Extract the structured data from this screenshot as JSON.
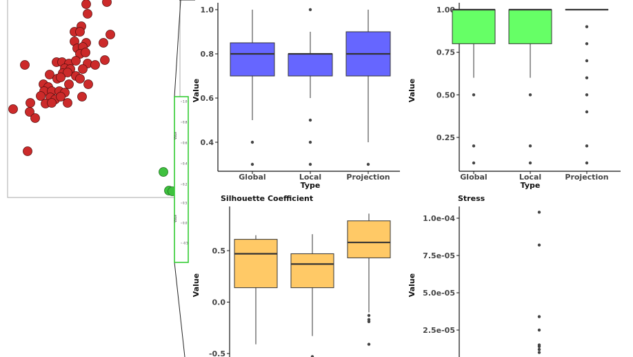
{
  "colors": {
    "scatter_fill": "#cc2a2a",
    "scatter_stroke": "#5a1010",
    "green_point": "#3fc13f",
    "panel_border": "#aaaaaa",
    "inset_border": "#33cc33",
    "mini_panel_label": "#bbbbbb",
    "blue_box": "#6666ff",
    "green_box": "#66ff66",
    "orange_box": "#ffc966",
    "outlier": "#444444",
    "median": "#333333"
  },
  "scatter": {
    "points": [
      [
        125,
        6
      ],
      [
        155,
        3
      ],
      [
        127,
        20
      ],
      [
        118,
        38
      ],
      [
        108,
        46
      ],
      [
        116,
        46
      ],
      [
        160,
        50
      ],
      [
        108,
        60
      ],
      [
        125,
        62
      ],
      [
        150,
        62
      ],
      [
        112,
        70
      ],
      [
        120,
        68
      ],
      [
        116,
        78
      ],
      [
        124,
        76
      ],
      [
        36,
        94
      ],
      [
        82,
        90
      ],
      [
        90,
        90
      ],
      [
        100,
        92
      ],
      [
        110,
        88
      ],
      [
        127,
        92
      ],
      [
        138,
        94
      ],
      [
        152,
        87
      ],
      [
        94,
        99
      ],
      [
        102,
        100
      ],
      [
        120,
        100
      ],
      [
        72,
        108
      ],
      [
        91,
        106
      ],
      [
        98,
        105
      ],
      [
        110,
        110
      ],
      [
        83,
        114
      ],
      [
        88,
        112
      ],
      [
        116,
        114
      ],
      [
        63,
        122
      ],
      [
        100,
        122
      ],
      [
        128,
        122
      ],
      [
        70,
        126
      ],
      [
        64,
        132
      ],
      [
        75,
        132
      ],
      [
        86,
        132
      ],
      [
        94,
        134
      ],
      [
        59,
        139
      ],
      [
        73,
        141
      ],
      [
        80,
        144
      ],
      [
        88,
        140
      ],
      [
        119,
        140
      ],
      [
        44,
        149
      ],
      [
        66,
        150
      ],
      [
        75,
        149
      ],
      [
        98,
        149
      ],
      [
        19,
        158
      ],
      [
        43,
        162
      ],
      [
        51,
        171
      ],
      [
        40,
        219
      ]
    ],
    "green_points": [
      [
        237,
        249
      ],
      [
        245,
        276
      ],
      [
        250,
        277
      ]
    ]
  },
  "inset": {
    "tick_values_top": [
      "1.0",
      "0.8",
      "0.6",
      "0.4",
      "0.2"
    ],
    "tick_values_bottom": [
      "0.5",
      "0.0",
      "-0.5"
    ],
    "axis_label_top": "Value",
    "axis_label_bottom": "Value"
  },
  "chart_data": [
    {
      "type": "box",
      "title": "",
      "xlabel": "Type",
      "ylabel": "Value",
      "ylim": [
        0.31,
        1.03
      ],
      "yticks": [
        "1.0",
        "0.8",
        "0.6",
        "0.4"
      ],
      "categories": [
        "Global",
        "Local",
        "Projection"
      ],
      "boxes": [
        {
          "lower_whisker": 0.5,
          "q1": 0.7,
          "median": 0.8,
          "q3": 0.85,
          "upper_whisker": 1.0,
          "outliers": [
            0.4,
            0.3
          ]
        },
        {
          "lower_whisker": 0.6,
          "q1": 0.7,
          "median": 0.8,
          "q3": 0.8,
          "upper_whisker": 0.9,
          "outliers": [
            1.0,
            0.5,
            0.4,
            0.3
          ]
        },
        {
          "lower_whisker": 0.4,
          "q1": 0.7,
          "median": 0.8,
          "q3": 0.9,
          "upper_whisker": 1.0,
          "outliers": [
            0.3
          ]
        }
      ]
    },
    {
      "type": "box",
      "title": "",
      "xlabel": "Type",
      "ylabel": "Value",
      "ylim": [
        0.08,
        1.04
      ],
      "yticks": [
        "1.00",
        "0.75",
        "0.50",
        "0.25"
      ],
      "categories": [
        "Global",
        "Local",
        "Projection"
      ],
      "boxes": [
        {
          "lower_whisker": 0.6,
          "q1": 0.8,
          "median": 1.0,
          "q3": 1.0,
          "upper_whisker": 1.0,
          "outliers": [
            0.5,
            0.2,
            0.1
          ]
        },
        {
          "lower_whisker": 0.6,
          "q1": 0.8,
          "median": 1.0,
          "q3": 1.0,
          "upper_whisker": 1.0,
          "outliers": [
            0.5,
            0.2,
            0.1
          ]
        },
        {
          "lower_whisker": 1.0,
          "q1": 1.0,
          "median": 1.0,
          "q3": 1.0,
          "upper_whisker": 1.0,
          "outliers": [
            0.9,
            0.8,
            0.7,
            0.6,
            0.5,
            0.4,
            0.2,
            0.1
          ]
        }
      ]
    },
    {
      "type": "box",
      "title": "Silhouette Coefficient",
      "xlabel": "",
      "ylabel": "Value",
      "ylim": [
        -0.56,
        0.88
      ],
      "yticks": [
        "0.5",
        "0.0",
        "-0.5"
      ],
      "categories": [
        "",
        "",
        ""
      ],
      "boxes": [
        {
          "lower_whisker": -0.41,
          "q1": 0.14,
          "median": 0.47,
          "q3": 0.61,
          "upper_whisker": 0.65,
          "outliers": []
        },
        {
          "lower_whisker": -0.33,
          "q1": 0.14,
          "median": 0.37,
          "q3": 0.47,
          "upper_whisker": 0.66,
          "outliers": [
            -0.53
          ]
        },
        {
          "lower_whisker": -0.1,
          "q1": 0.43,
          "median": 0.58,
          "q3": 0.79,
          "upper_whisker": 0.86,
          "outliers": [
            -0.13,
            -0.17,
            -0.19,
            -0.41
          ]
        }
      ]
    },
    {
      "type": "box",
      "title": "Stress",
      "xlabel": "",
      "ylabel": "Value",
      "ylim": [
        5e-06,
        0.00011
      ],
      "yticks": [
        "1.0e-04",
        "7.5e-05",
        "5.0e-05",
        "2.5e-05"
      ],
      "categories": [
        "",
        "",
        ""
      ],
      "boxes": [
        {
          "lower_whisker": null,
          "q1": null,
          "median": null,
          "q3": null,
          "upper_whisker": null,
          "outliers": []
        },
        {
          "lower_whisker": null,
          "q1": null,
          "median": null,
          "q3": null,
          "upper_whisker": null,
          "outliers": []
        },
        {
          "lower_whisker": null,
          "q1": null,
          "median": null,
          "q3": null,
          "upper_whisker": null,
          "outliers": [
            0.000104,
            8.2e-05,
            3.4e-05,
            2.5e-05,
            1.5e-05,
            1.4e-05,
            1.2e-05,
            1e-05
          ]
        }
      ]
    }
  ]
}
